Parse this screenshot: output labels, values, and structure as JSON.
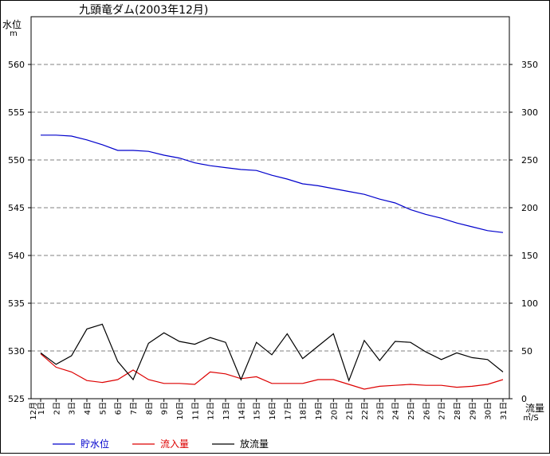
{
  "chart_data": {
    "type": "line",
    "title": "九頭竜ダム(2003年12月)",
    "y_left": {
      "label_lines": [
        "水位",
        "m"
      ],
      "range": [
        525,
        565
      ],
      "ticks": [
        525,
        530,
        535,
        540,
        545,
        550,
        555,
        560
      ]
    },
    "y_right": {
      "label_lines": [
        "流量",
        "㎥/S"
      ],
      "range": [
        0,
        400
      ],
      "ticks": [
        0,
        50,
        100,
        150,
        200,
        250,
        300,
        350
      ]
    },
    "x": {
      "month_label": "12月",
      "categories": [
        "1日",
        "2日",
        "3日",
        "4日",
        "5日",
        "6日",
        "7日",
        "8日",
        "9日",
        "10日",
        "11日",
        "12日",
        "13日",
        "14日",
        "15日",
        "16日",
        "17日",
        "18日",
        "19日",
        "20日",
        "21日",
        "22日",
        "23日",
        "24日",
        "25日",
        "26日",
        "27日",
        "28日",
        "29日",
        "30日",
        "31日"
      ]
    },
    "grid": "horizontal-dashed",
    "legend_position": "bottom-left",
    "series": [
      {
        "name": "貯水位",
        "axis": "left",
        "color": "#0000cc",
        "values": [
          552.6,
          552.6,
          552.5,
          552.1,
          551.6,
          551.0,
          551.0,
          550.9,
          550.5,
          550.2,
          549.7,
          549.4,
          549.2,
          549.0,
          548.9,
          548.4,
          548.0,
          547.5,
          547.3,
          547.0,
          546.7,
          546.4,
          545.9,
          545.5,
          544.8,
          544.3,
          543.9,
          543.4,
          543.0,
          542.6,
          542.4
        ]
      },
      {
        "name": "流入量",
        "axis": "right",
        "color": "#dd0000",
        "values": [
          47,
          33,
          28,
          19,
          17,
          20,
          30,
          20,
          16,
          16,
          15,
          28,
          26,
          21,
          23,
          16,
          16,
          16,
          20,
          20,
          15,
          10,
          13,
          14,
          15,
          14,
          14,
          12,
          13,
          15,
          20
        ]
      },
      {
        "name": "放流量",
        "axis": "right",
        "color": "#000000",
        "values": [
          48,
          36,
          45,
          73,
          78,
          39,
          20,
          58,
          69,
          60,
          57,
          64,
          59,
          20,
          59,
          46,
          68,
          42,
          55,
          68,
          19,
          61,
          40,
          60,
          59,
          49,
          41,
          48,
          43,
          41,
          28
        ]
      }
    ]
  }
}
